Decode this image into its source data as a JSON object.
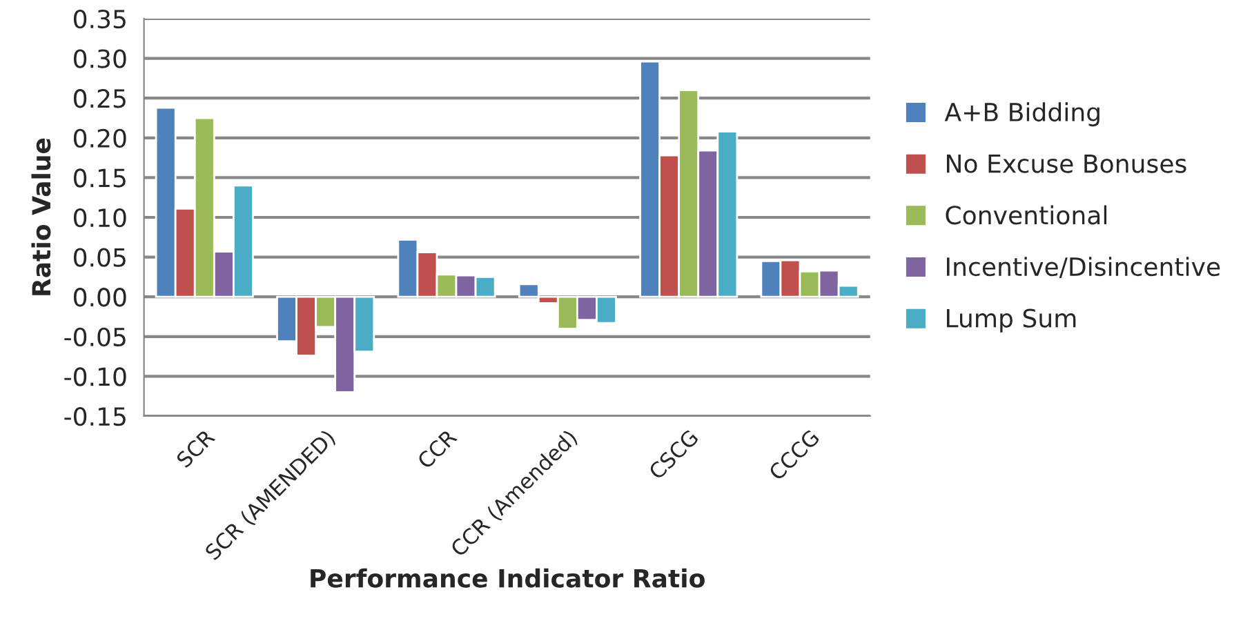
{
  "chart_data": {
    "type": "bar",
    "xlabel": "Performance Indicator Ratio",
    "ylabel": "Ratio Value",
    "categories": [
      "SCR",
      "SCR (AMENDED)",
      "CCR",
      "CCR (Amended)",
      "CSCG",
      "CCCG"
    ],
    "series": [
      {
        "name": "A+B Bidding",
        "color": "#4f81bd",
        "values": [
          0.238,
          -0.056,
          0.072,
          0.016,
          0.296,
          0.045
        ]
      },
      {
        "name": "No Excuse Bonuses",
        "color": "#c0504d",
        "values": [
          0.111,
          -0.074,
          0.056,
          -0.008,
          0.178,
          0.046
        ]
      },
      {
        "name": "Conventional",
        "color": "#9bbb59",
        "values": [
          0.225,
          -0.038,
          0.028,
          -0.04,
          0.26,
          0.032
        ]
      },
      {
        "name": "Incentive/Disincentive",
        "color": "#8064a2",
        "values": [
          0.057,
          -0.12,
          0.027,
          -0.029,
          0.184,
          0.033
        ]
      },
      {
        "name": "Lump Sum",
        "color": "#4bacc6",
        "values": [
          0.14,
          -0.069,
          0.025,
          -0.033,
          0.208,
          0.014
        ]
      }
    ],
    "ylim": [
      -0.15,
      0.35
    ],
    "yticks": [
      {
        "value": -0.15,
        "label": "-0.15"
      },
      {
        "value": -0.1,
        "label": "-0.10"
      },
      {
        "value": -0.05,
        "label": "-0.05"
      },
      {
        "value": 0,
        "label": "0.00"
      },
      {
        "value": 0.05,
        "label": "0.05"
      },
      {
        "value": 0.1,
        "label": "0.10"
      },
      {
        "value": 0.15,
        "label": "0.15"
      },
      {
        "value": 0.2,
        "label": "0.20"
      },
      {
        "value": 0.25,
        "label": "0.25"
      },
      {
        "value": 0.3,
        "label": "0.30"
      },
      {
        "value": 0.35,
        "label": "0.35"
      }
    ],
    "grid": "y",
    "legend": "right"
  }
}
